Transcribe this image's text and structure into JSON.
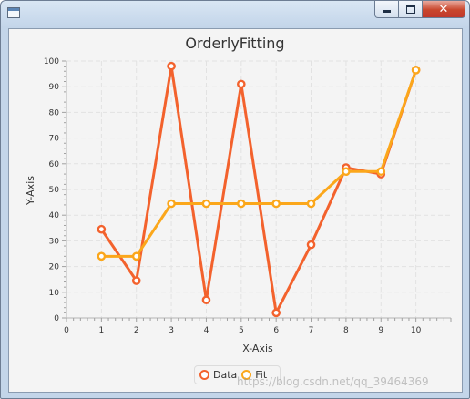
{
  "window": {
    "title": ""
  },
  "chart_data": {
    "type": "line",
    "title": "OrderlyFitting",
    "xlabel": "X-Axis",
    "ylabel": "Y-Axis",
    "xlim": [
      0,
      11
    ],
    "ylim": [
      0,
      100
    ],
    "x_ticks": [
      "0",
      "1",
      "2",
      "3",
      "4",
      "5",
      "6",
      "7",
      "8",
      "9",
      "10"
    ],
    "y_ticks": [
      "0",
      "10",
      "20",
      "30",
      "40",
      "50",
      "60",
      "70",
      "80",
      "90",
      "100"
    ],
    "grid": true,
    "legend_position": "bottom",
    "series": [
      {
        "name": "Data",
        "color": "#f3622d",
        "x": [
          1,
          2,
          3,
          4,
          5,
          6,
          7,
          8,
          9,
          10
        ],
        "y": [
          34.5,
          14.5,
          98,
          7,
          91,
          2,
          28.5,
          58.5,
          56,
          96.5
        ]
      },
      {
        "name": "Fit",
        "color": "#fba71b",
        "x": [
          1,
          2,
          3,
          4,
          5,
          6,
          7,
          8,
          9,
          10
        ],
        "y": [
          24,
          24,
          44.5,
          44.5,
          44.5,
          44.5,
          44.5,
          57,
          57,
          96.5
        ]
      }
    ]
  },
  "watermark": "https://blog.csdn.net/qq_39464369",
  "icons": {
    "minimize": "minimize-icon",
    "maximize": "maximize-icon",
    "close": "close-icon",
    "app": "app-icon"
  },
  "close_glyph": "✕"
}
